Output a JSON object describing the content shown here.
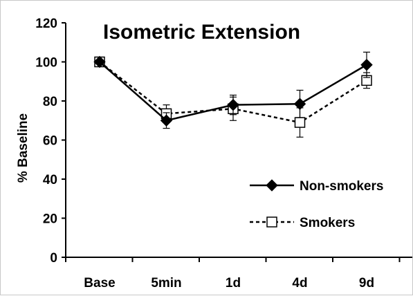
{
  "chart_data": {
    "type": "line",
    "title": "Isometric Extension",
    "xlabel": "",
    "ylabel": "% Baseline",
    "categories": [
      "Base",
      "5min",
      "1d",
      "4d",
      "9d"
    ],
    "ylim": [
      0,
      120
    ],
    "yticks": [
      0,
      20,
      40,
      60,
      80,
      100,
      120
    ],
    "grid": false,
    "legend_position": "lower-right",
    "series": [
      {
        "name": "Non-smokers",
        "values": [
          100,
          70,
          78,
          78.5,
          98.5
        ],
        "errors": [
          0,
          4,
          5,
          7,
          6.5
        ],
        "line_style": "solid",
        "marker": "diamond-filled",
        "color": "#000000"
      },
      {
        "name": "Smokers",
        "values": [
          100,
          73.5,
          76,
          69,
          90.5
        ],
        "errors": [
          0,
          4.5,
          6,
          7.5,
          4
        ],
        "line_style": "dashed",
        "marker": "square-open",
        "color": "#000000"
      }
    ]
  }
}
